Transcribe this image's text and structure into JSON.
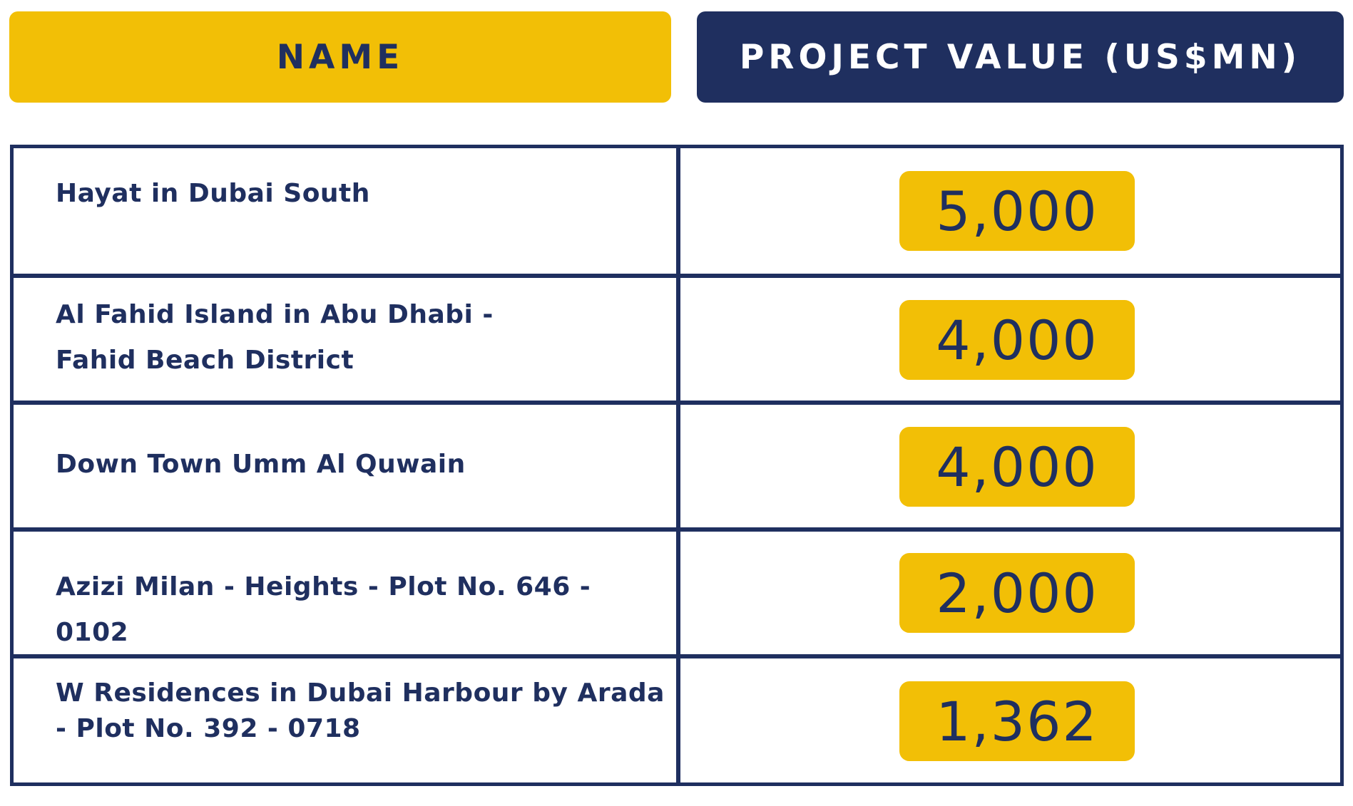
{
  "header": {
    "name_label": "NAME",
    "value_label": "PROJECT VALUE (US$MN)"
  },
  "rows": [
    {
      "name": "Hayat in Dubai South",
      "value": "5,000"
    },
    {
      "name": "Al Fahid Island in Abu Dhabi -\nFahid Beach District",
      "value": "4,000"
    },
    {
      "name": "Down Town Umm Al Quwain",
      "value": "4,000"
    },
    {
      "name": "Azizi Milan - Heights - Plot No. 646 - 0102",
      "value": "2,000"
    },
    {
      "name": "W Residences in Dubai Harbour by Arada\n - Plot No. 392 - 0718",
      "value": "1,362"
    }
  ],
  "colors": {
    "navy": "#1f2f5f",
    "yellow": "#f2bf06"
  }
}
